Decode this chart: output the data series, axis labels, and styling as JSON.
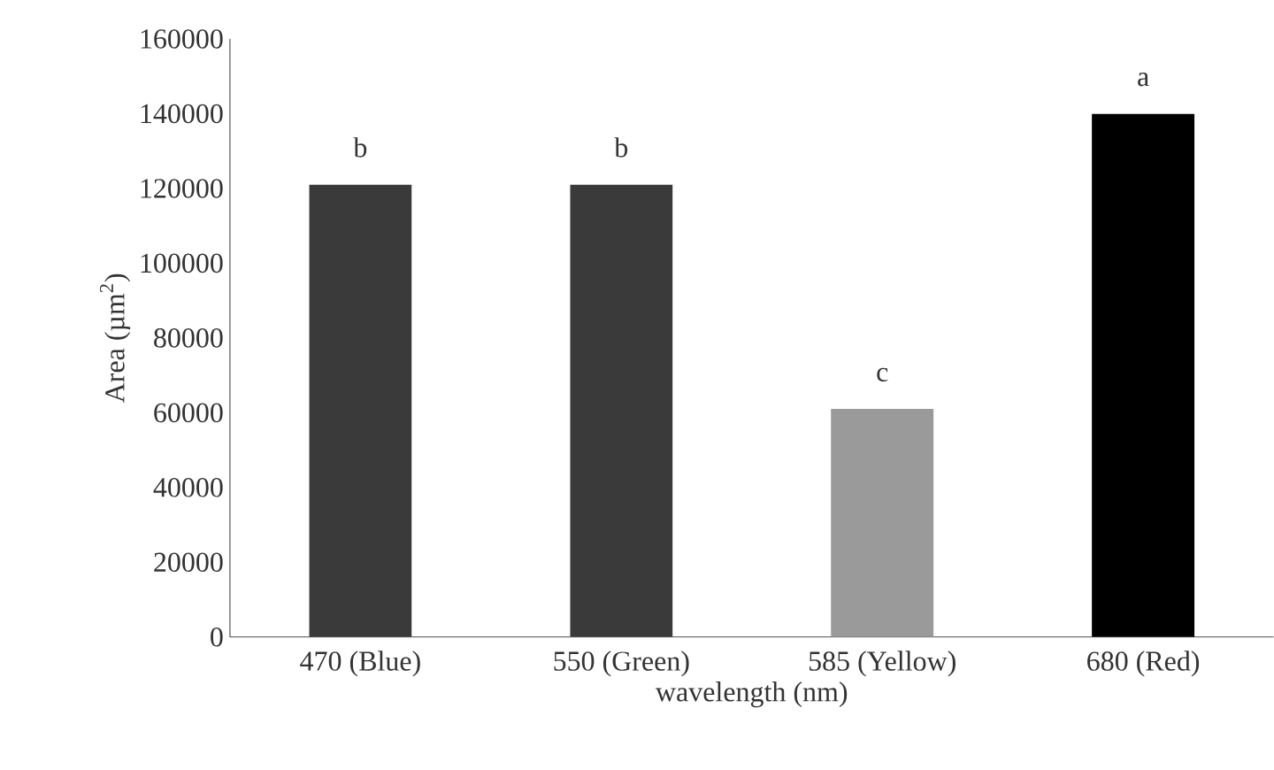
{
  "chart_data": {
    "type": "bar",
    "xlabel": "wavelength (nm)",
    "ylabel": "Area (µm$^{2}$)",
    "categories": [
      "470 (Blue)",
      "550 (Green)",
      "585 (Yellow)",
      "680 (Red)"
    ],
    "values": [
      121000,
      121000,
      61000,
      140000
    ],
    "colors": [
      "#3a3a3a",
      "#3a3a3a",
      "#9a9a9a",
      "#000000"
    ],
    "ylim": [
      0,
      160000
    ],
    "yticks": [
      0,
      20000,
      40000,
      60000,
      80000,
      100000,
      120000,
      140000,
      160000
    ],
    "annotations": [
      {
        "text": "b",
        "x": "470 (Blue)",
        "y": 121000
      },
      {
        "text": "b",
        "x": "550 (Green)",
        "y": 121000
      },
      {
        "text": "c",
        "x": "585 (Yellow)",
        "y": 61000
      },
      {
        "text": "a",
        "x": "680 (Red)",
        "y": 140000
      }
    ]
  }
}
